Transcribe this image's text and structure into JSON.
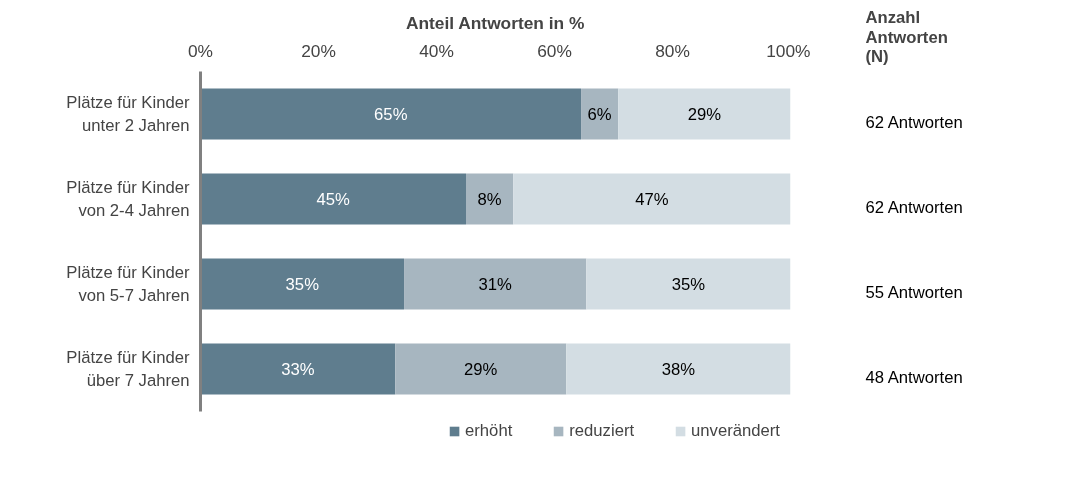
{
  "chart_data": {
    "type": "bar",
    "orientation": "horizontal",
    "stacked": true,
    "xlabel": "Anteil Antworten in %",
    "categories": [
      "Plätze für Kinder\nunter 2 Jahren",
      "Plätze für Kinder\nvon 2-4 Jahren",
      "Plätze für Kinder\nvon 5-7 Jahren",
      "Plätze für Kinder\nüber 7 Jahren"
    ],
    "series": [
      {
        "name": "erhöht",
        "color": "#5f7d8e",
        "values": [
          64.5,
          45,
          34.5,
          33
        ],
        "value_labels": [
          "65%",
          "45%",
          "35%",
          "33%"
        ]
      },
      {
        "name": "reduziert",
        "color": "#a7b6c0",
        "values": [
          6.3,
          8,
          30.9,
          29
        ],
        "value_labels": [
          "6%",
          "8%",
          "31%",
          "29%"
        ]
      },
      {
        "name": "unverändert",
        "color": "#d3dde3",
        "values": [
          29.2,
          47,
          34.6,
          38
        ],
        "value_labels": [
          "29%",
          "47%",
          "35%",
          "38%"
        ]
      }
    ],
    "xlim": [
      0,
      100
    ],
    "xticks": [
      {
        "value": 0,
        "label": "0%"
      },
      {
        "value": 20,
        "label": "20%"
      },
      {
        "value": 40,
        "label": "40%"
      },
      {
        "value": 60,
        "label": "60%"
      },
      {
        "value": 80,
        "label": "80%"
      },
      {
        "value": 100,
        "label": "100%"
      }
    ],
    "annotations": [
      "Anzahl\nAntworten\n(N)",
      "62 Antworten",
      "62 Antworten",
      "55 Antworten",
      "48 Antworten"
    ],
    "grid": false,
    "legend": "bottom"
  }
}
